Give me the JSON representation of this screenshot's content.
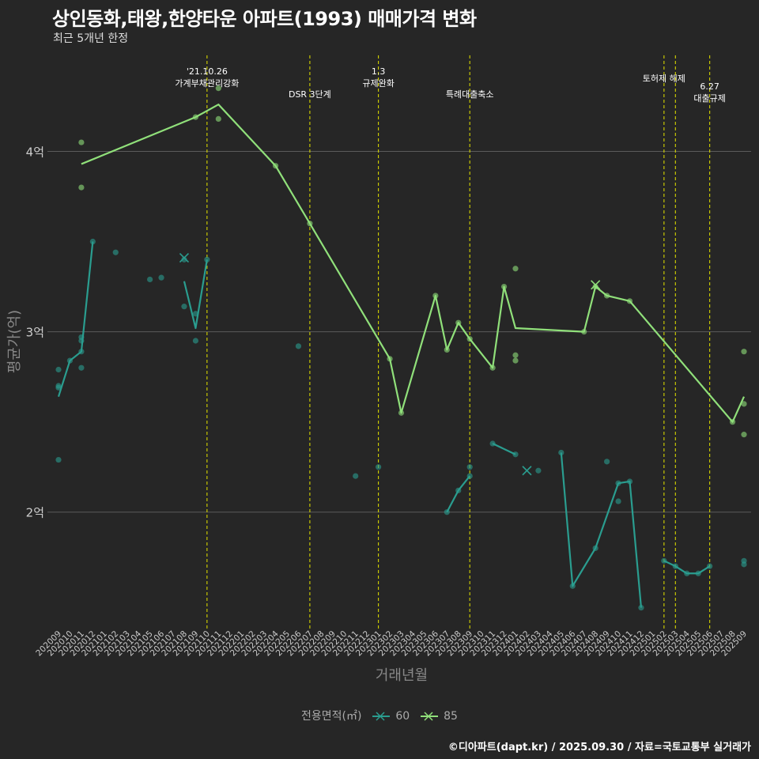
{
  "header": {
    "title": "상인동화,태왕,한양타운 아파트(1993) 매매가격 변화",
    "subtitle": "최근 5개년 한정"
  },
  "caption": "©디아파트(dapt.kr) / 2025.09.30 / 자료=국토교통부 실거래가",
  "legend": {
    "title": "전용면적(㎡)",
    "items": [
      {
        "label": "60",
        "color": "#2a9d8f"
      },
      {
        "label": "85",
        "color": "#90e07a"
      }
    ]
  },
  "chart_data": {
    "type": "line",
    "title": "상인동화,태왕,한양타운 아파트(1993) 매매가격 변화",
    "xlabel": "거래년월",
    "ylabel": "평균가(억)",
    "ylim": [
      1.35,
      4.55
    ],
    "yticks": [
      2,
      3,
      4
    ],
    "ytick_labels": [
      "2억",
      "3억",
      "4억"
    ],
    "categories": [
      "202009",
      "202010",
      "202011",
      "202012",
      "202101",
      "202102",
      "202103",
      "202104",
      "202105",
      "202106",
      "202107",
      "202108",
      "202109",
      "202110",
      "202111",
      "202112",
      "202201",
      "202202",
      "202203",
      "202204",
      "202205",
      "202206",
      "202207",
      "202208",
      "202209",
      "202210",
      "202211",
      "202212",
      "202301",
      "202302",
      "202303",
      "202304",
      "202305",
      "202306",
      "202307",
      "202308",
      "202309",
      "202310",
      "202311",
      "202312",
      "202401",
      "202402",
      "202403",
      "202404",
      "202405",
      "202406",
      "202407",
      "202408",
      "202409",
      "202410",
      "202411",
      "202412",
      "202501",
      "202502",
      "202503",
      "202504",
      "202505",
      "202506",
      "202507",
      "202508",
      "202509"
    ],
    "events": [
      {
        "x": 13,
        "label": "'21.10.26\n가계부채관리강화",
        "row": 0
      },
      {
        "x": 22,
        "label": "DSR 3단계",
        "row": 1
      },
      {
        "x": 28,
        "label": "1.3\n규제완화",
        "row": 0
      },
      {
        "x": 36,
        "label": "특례대출축소",
        "row": 1
      },
      {
        "x": 53,
        "label": "토허제 해제",
        "row": 0
      },
      {
        "x": 54,
        "label": "",
        "row": 0
      },
      {
        "x": 57,
        "label": "6.27\n대출규제",
        "row": 0.5
      }
    ],
    "series": [
      {
        "name": "60",
        "color": "#2a9d8f",
        "points": [
          [
            0,
            2.64
          ],
          [
            1,
            2.84
          ],
          [
            2,
            2.89
          ],
          [
            3,
            3.5
          ],
          [
            null,
            null
          ],
          [
            11,
            3.28
          ],
          [
            12,
            3.02
          ],
          [
            13,
            3.4
          ],
          [
            null,
            null
          ],
          [
            34,
            2.0
          ],
          [
            35,
            2.12
          ],
          [
            36,
            2.2
          ],
          [
            null,
            null
          ],
          [
            38,
            2.38
          ],
          [
            40,
            2.32
          ],
          [
            null,
            null
          ],
          [
            44,
            2.33
          ],
          [
            45,
            1.59
          ],
          [
            47,
            1.8
          ],
          [
            49,
            2.16
          ],
          [
            50,
            2.17
          ],
          [
            51,
            1.47
          ],
          [
            null,
            null
          ],
          [
            53,
            1.73
          ],
          [
            54,
            1.7
          ],
          [
            55,
            1.66
          ],
          [
            56,
            1.66
          ],
          [
            57,
            1.7
          ],
          [
            null,
            null
          ],
          [
            60,
            1.71
          ]
        ],
        "scatter": [
          [
            0,
            2.29
          ],
          [
            0,
            2.7
          ],
          [
            0,
            2.79
          ],
          [
            0,
            2.69
          ],
          [
            1,
            2.84
          ],
          [
            2,
            2.8
          ],
          [
            2,
            2.95
          ],
          [
            2,
            2.97
          ],
          [
            2,
            2.89
          ],
          [
            3,
            3.5
          ],
          [
            5,
            3.44
          ],
          [
            8,
            3.29
          ],
          [
            9,
            3.3
          ],
          [
            11,
            3.14
          ],
          [
            11,
            3.4
          ],
          [
            12,
            2.95
          ],
          [
            12,
            3.1
          ],
          [
            13,
            3.4
          ],
          [
            21,
            2.92
          ],
          [
            26,
            2.2
          ],
          [
            28,
            2.25
          ],
          [
            34,
            2.0
          ],
          [
            35,
            2.12
          ],
          [
            36,
            2.2
          ],
          [
            36,
            2.25
          ],
          [
            38,
            2.38
          ],
          [
            40,
            2.32
          ],
          [
            42,
            2.23
          ],
          [
            44,
            2.33
          ],
          [
            45,
            1.59
          ],
          [
            47,
            1.8
          ],
          [
            48,
            2.28
          ],
          [
            49,
            2.06
          ],
          [
            49,
            2.16
          ],
          [
            50,
            2.17
          ],
          [
            51,
            1.47
          ],
          [
            53,
            1.73
          ],
          [
            54,
            1.7
          ],
          [
            55,
            1.66
          ],
          [
            56,
            1.66
          ],
          [
            57,
            1.7
          ],
          [
            60,
            1.73
          ],
          [
            60,
            1.71
          ]
        ],
        "crosses": [
          [
            11,
            3.41
          ],
          [
            41,
            2.23
          ]
        ]
      },
      {
        "name": "85",
        "color": "#90e07a",
        "points": [
          [
            2,
            3.93
          ],
          [
            12,
            4.19
          ],
          [
            14,
            4.26
          ],
          [
            19,
            3.92
          ],
          [
            22,
            3.6
          ],
          [
            29,
            2.85
          ],
          [
            30,
            2.55
          ],
          [
            33,
            3.2
          ],
          [
            34,
            2.9
          ],
          [
            35,
            3.05
          ],
          [
            36,
            2.96
          ],
          [
            38,
            2.8
          ],
          [
            39,
            3.25
          ],
          [
            40,
            3.02
          ],
          [
            46,
            3.0
          ],
          [
            47,
            3.25
          ],
          [
            48,
            3.2
          ],
          [
            50,
            3.17
          ],
          [
            59,
            2.5
          ],
          [
            60,
            2.64
          ]
        ],
        "scatter": [
          [
            2,
            4.05
          ],
          [
            2,
            3.8
          ],
          [
            12,
            4.19
          ],
          [
            14,
            4.35
          ],
          [
            14,
            4.18
          ],
          [
            19,
            3.92
          ],
          [
            22,
            3.6
          ],
          [
            29,
            2.85
          ],
          [
            30,
            2.55
          ],
          [
            33,
            3.2
          ],
          [
            34,
            2.9
          ],
          [
            35,
            3.05
          ],
          [
            36,
            2.96
          ],
          [
            38,
            2.8
          ],
          [
            39,
            3.25
          ],
          [
            40,
            3.35
          ],
          [
            40,
            2.87
          ],
          [
            40,
            2.84
          ],
          [
            46,
            3.0
          ],
          [
            47,
            3.25
          ],
          [
            48,
            3.2
          ],
          [
            50,
            3.17
          ],
          [
            59,
            2.5
          ],
          [
            60,
            2.89
          ],
          [
            60,
            2.6
          ],
          [
            60,
            2.43
          ]
        ],
        "crosses": [
          [
            47,
            3.26
          ]
        ]
      }
    ]
  }
}
